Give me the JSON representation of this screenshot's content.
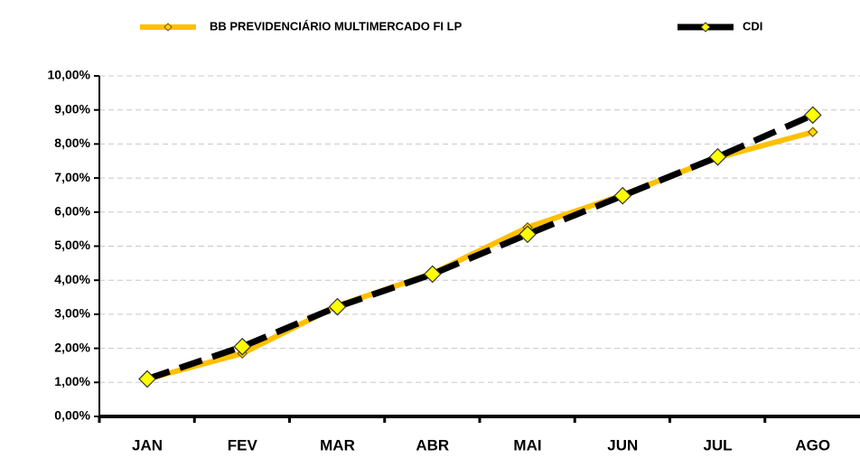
{
  "chart_data": {
    "type": "line",
    "categories": [
      "JAN",
      "FEV",
      "MAR",
      "ABR",
      "MAI",
      "JUN",
      "JUL",
      "AGO"
    ],
    "series": [
      {
        "name": "BB PREVIDENCIÁRIO MULTIMERCADO FI LP",
        "color": "#FFC000",
        "values": [
          1.1,
          1.85,
          3.25,
          4.2,
          5.55,
          6.5,
          7.6,
          8.35
        ]
      },
      {
        "name": "CDI",
        "color": "#000000",
        "values": [
          1.1,
          2.05,
          3.22,
          4.18,
          5.35,
          6.48,
          7.62,
          8.85
        ]
      }
    ],
    "ylim": [
      0,
      10
    ],
    "yticks": [
      {
        "value": 0,
        "label": "0,00%"
      },
      {
        "value": 1,
        "label": "1,00%"
      },
      {
        "value": 2,
        "label": "2,00%"
      },
      {
        "value": 3,
        "label": "3,00%"
      },
      {
        "value": 4,
        "label": "4,00%"
      },
      {
        "value": 5,
        "label": "5,00%"
      },
      {
        "value": 6,
        "label": "6,00%"
      },
      {
        "value": 7,
        "label": "7,00%"
      },
      {
        "value": 8,
        "label": "8,00%"
      },
      {
        "value": 9,
        "label": "9,00%"
      },
      {
        "value": 10,
        "label": "10,00%"
      }
    ],
    "grid": true,
    "legend": "top"
  }
}
